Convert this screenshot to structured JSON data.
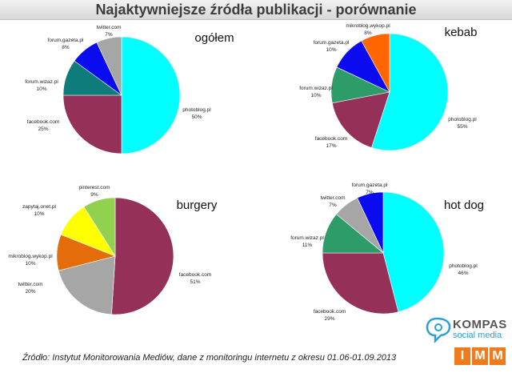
{
  "title": "Najaktywniejsze źródła publikacji - porównanie",
  "source": "Źródło: Instytut Monitorowania Mediów, dane z monitoringu internetu z okresu 01.06-01.09.2013",
  "logos": {
    "kompas": "KOMPAS",
    "kompas_sub": "social media",
    "imm": [
      "I",
      "M",
      "M"
    ]
  },
  "chart_data": [
    {
      "type": "pie",
      "title": "ogółem",
      "slices": [
        {
          "label": "photoblog.pl",
          "value": 50,
          "pct": "50%",
          "color": "#00ffff"
        },
        {
          "label": "facebook.com",
          "value": 25,
          "pct": "25%",
          "color": "#953059"
        },
        {
          "label": "forum.wizaz.pl",
          "value": 10,
          "pct": "10%",
          "color": "#0e7c7b"
        },
        {
          "label": "forum.gazeta.pl",
          "value": 8,
          "pct": "8%",
          "color": "#0b0bf0"
        },
        {
          "label": "twitter.com",
          "value": 7,
          "pct": "7%",
          "color": "#a6a6a6"
        }
      ]
    },
    {
      "type": "pie",
      "title": "kebab",
      "slices": [
        {
          "label": "photoblog.pl",
          "value": 55,
          "pct": "55%",
          "color": "#00ffff"
        },
        {
          "label": "facebook.com",
          "value": 17,
          "pct": "17%",
          "color": "#953059"
        },
        {
          "label": "forum.wizaz.pl",
          "value": 10,
          "pct": "10%",
          "color": "#2e9c68"
        },
        {
          "label": "forum.gazeta.pl",
          "value": 10,
          "pct": "10%",
          "color": "#0b0bf0"
        },
        {
          "label": "mikroblog.wykop.pl",
          "value": 8,
          "pct": "8%",
          "color": "#ff6600"
        }
      ]
    },
    {
      "type": "pie",
      "title": "burgery",
      "slices": [
        {
          "label": "facebook.com",
          "value": 51,
          "pct": "51%",
          "color": "#953059"
        },
        {
          "label": "twitter.com",
          "value": 20,
          "pct": "20%",
          "color": "#a6a6a6"
        },
        {
          "label": "mikroblog.wykop.pl",
          "value": 10,
          "pct": "10%",
          "color": "#e46c0a"
        },
        {
          "label": "zapytaj.onet.pl",
          "value": 10,
          "pct": "10%",
          "color": "#ffff00"
        },
        {
          "label": "pinterest.com",
          "value": 9,
          "pct": "9%",
          "color": "#92d050"
        }
      ]
    },
    {
      "type": "pie",
      "title": "hot dog",
      "slices": [
        {
          "label": "photoblog.pl",
          "value": 46,
          "pct": "46%",
          "color": "#00ffff"
        },
        {
          "label": "facebook.com",
          "value": 29,
          "pct": "29%",
          "color": "#953059"
        },
        {
          "label": "forum.wizaz.pl",
          "value": 11,
          "pct": "11%",
          "color": "#2e9c68"
        },
        {
          "label": "twitter.com",
          "value": 7,
          "pct": "7%",
          "color": "#a6a6a6"
        },
        {
          "label": "forum.gazeta.pl",
          "value": 7,
          "pct": "7%",
          "color": "#0b0bf0"
        }
      ]
    }
  ]
}
